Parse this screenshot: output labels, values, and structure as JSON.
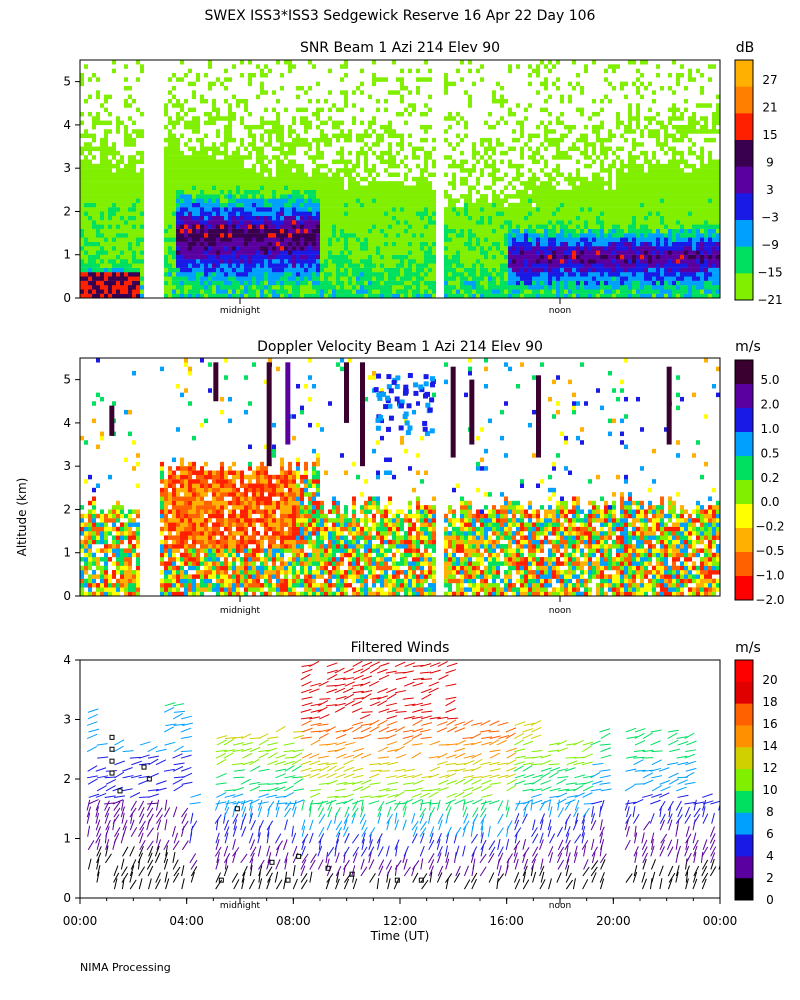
{
  "main_title": "SWEX ISS3*ISS3 Sedgewick Reserve  16 Apr 22 Day 106",
  "y_axis_label": "Altitude (km)",
  "x_axis_label": "Time (UT)",
  "footer": "NIMA Processing",
  "marker_labels": {
    "midnight": "midnight",
    "noon": "noon"
  },
  "x_ticks": [
    "00:00",
    "04:00",
    "08:00",
    "12:00",
    "16:00",
    "20:00",
    "00:00"
  ],
  "colors": {
    "scale": [
      "#000000",
      "#3a0050",
      "#5a00a0",
      "#1a1ae6",
      "#00a0ff",
      "#00d8d8",
      "#00e060",
      "#80f000",
      "#ffff00",
      "#ffb000",
      "#ff6000",
      "#ff0000"
    ]
  },
  "chart_data": [
    {
      "type": "heatmap",
      "title": "SNR Beam 1 Azi 214 Elev 90",
      "ylim": [
        0,
        5.5
      ],
      "y_ticks": [
        "0",
        "1",
        "2",
        "3",
        "4",
        "5"
      ],
      "colorbar_unit": "dB",
      "colorbar_labels": [
        "27",
        "21",
        "15",
        "9",
        "3",
        "−3",
        "−9",
        "−15",
        "−21"
      ],
      "colorbar_colors": [
        "#ffb000",
        "#ff8000",
        "#ff2000",
        "#3a0050",
        "#5a00a0",
        "#1a1ae6",
        "#00a0ff",
        "#00e060",
        "#80f000"
      ]
    },
    {
      "type": "heatmap",
      "title": "Doppler Velocity Beam 1 Azi 214 Elev 90",
      "ylim": [
        0,
        5.5
      ],
      "y_ticks": [
        "0",
        "1",
        "2",
        "3",
        "4",
        "5"
      ],
      "colorbar_unit": "m/s",
      "colorbar_labels": [
        "5.0",
        "2.0",
        "1.0",
        "0.5",
        "0.2",
        "0.0",
        "−0.2",
        "−0.5",
        "−1.0",
        "−2.0"
      ],
      "colorbar_colors": [
        "#3a0030",
        "#5a00a0",
        "#1a1ae6",
        "#00a0ff",
        "#00e060",
        "#80f000",
        "#ffff00",
        "#ffb000",
        "#ff6000",
        "#ff0000"
      ]
    },
    {
      "type": "scatter",
      "title": "Filtered Winds",
      "ylim": [
        0,
        4
      ],
      "y_ticks": [
        "0",
        "1",
        "2",
        "3",
        "4"
      ],
      "colorbar_unit": "m/s",
      "colorbar_labels": [
        "20",
        "18",
        "16",
        "14",
        "12",
        "10",
        "8",
        "6",
        "4",
        "2",
        "0"
      ],
      "colorbar_colors": [
        "#ff0000",
        "#e00000",
        "#ff6000",
        "#ff9000",
        "#d0d000",
        "#80f000",
        "#00e060",
        "#00a0ff",
        "#1a1ae6",
        "#5a00a0",
        "#000000"
      ]
    }
  ]
}
